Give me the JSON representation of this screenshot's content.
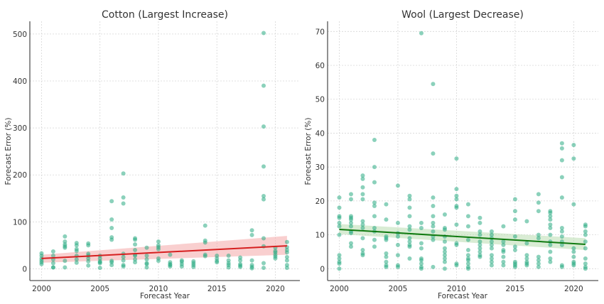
{
  "chart_data": [
    {
      "type": "scatter",
      "title": "Cotton (Largest Increase)",
      "xlabel": "Forecast Year",
      "ylabel": "Forecast Error (%)",
      "xlim": [
        1999,
        2022.1
      ],
      "ylim": [
        -25,
        527
      ],
      "xticks": [
        2000,
        2005,
        2010,
        2015,
        2020
      ],
      "yticks": [
        0,
        100,
        200,
        300,
        400,
        500
      ],
      "grid": true,
      "point_color": "#2bab84",
      "trend": {
        "color": "#d62020",
        "band_color": "#f4a8a8",
        "x": [
          2000,
          2021
        ],
        "y": [
          22,
          49
        ],
        "ci_low": [
          13,
          30
        ],
        "ci_high": [
          30,
          70
        ]
      },
      "points": [
        {
          "x": 2000,
          "y": [
            33,
            28,
            22,
            18,
            14,
            10
          ]
        },
        {
          "x": 2001,
          "y": [
            37,
            28,
            20,
            12,
            3,
            3
          ]
        },
        {
          "x": 2002,
          "y": [
            69,
            58,
            52,
            48,
            45,
            17,
            3
          ]
        },
        {
          "x": 2003,
          "y": [
            55,
            50,
            42,
            38,
            28,
            20,
            13
          ]
        },
        {
          "x": 2004,
          "y": [
            54,
            50,
            32,
            28,
            22,
            16,
            7
          ]
        },
        {
          "x": 2005,
          "y": [
            28,
            22,
            16,
            14,
            12,
            2
          ]
        },
        {
          "x": 2006,
          "y": [
            144,
            105,
            87,
            67,
            62,
            17,
            14,
            8
          ]
        },
        {
          "x": 2007,
          "y": [
            203,
            152,
            139,
            32,
            25,
            18,
            8,
            5
          ]
        },
        {
          "x": 2008,
          "y": [
            65,
            62,
            52,
            40,
            30,
            28,
            20,
            14
          ]
        },
        {
          "x": 2009,
          "y": [
            45,
            28,
            20,
            12,
            10,
            3
          ]
        },
        {
          "x": 2010,
          "y": [
            58,
            50,
            46,
            42,
            22,
            17
          ]
        },
        {
          "x": 2011,
          "y": [
            30,
            14,
            10,
            8,
            5
          ]
        },
        {
          "x": 2012,
          "y": [
            18,
            15,
            10,
            5
          ]
        },
        {
          "x": 2013,
          "y": [
            16,
            12,
            8,
            4
          ]
        },
        {
          "x": 2014,
          "y": [
            92,
            60,
            56,
            30,
            27
          ]
        },
        {
          "x": 2015,
          "y": [
            28,
            22,
            17,
            14
          ]
        },
        {
          "x": 2016,
          "y": [
            28,
            18,
            12,
            8,
            3
          ]
        },
        {
          "x": 2017,
          "y": [
            24,
            18,
            10,
            7,
            4
          ]
        },
        {
          "x": 2018,
          "y": [
            82,
            72,
            18,
            8,
            4,
            1
          ]
        },
        {
          "x": 2019,
          "y": [
            502,
            390,
            303,
            218,
            155,
            148,
            65,
            48,
            12,
            2
          ]
        },
        {
          "x": 2020,
          "y": [
            45,
            38,
            35,
            30,
            26,
            22
          ]
        },
        {
          "x": 2021,
          "y": [
            57,
            46,
            40,
            35,
            25,
            18,
            8,
            2
          ]
        }
      ]
    },
    {
      "type": "scatter",
      "title": "Wool (Largest Decrease)",
      "xlabel": "Forecast Year",
      "ylabel": "Forecast Error (%)",
      "xlim": [
        1999,
        2022.1
      ],
      "ylim": [
        -3.5,
        73
      ],
      "xticks": [
        2000,
        2005,
        2010,
        2015,
        2020
      ],
      "yticks": [
        0,
        10,
        20,
        30,
        40,
        50,
        60,
        70
      ],
      "grid": true,
      "point_color": "#2bab84",
      "trend": {
        "color": "#107a10",
        "band_color": "#b9dcb0",
        "x": [
          2000,
          2021
        ],
        "y": [
          11.6,
          7.2
        ],
        "ci_low": [
          10.2,
          5.5
        ],
        "ci_high": [
          13.2,
          9.0
        ]
      },
      "points": [
        {
          "x": 2000,
          "y": [
            21,
            18,
            15.5,
            15,
            13.5,
            12.5,
            10,
            4,
            3,
            2,
            1.5,
            0
          ]
        },
        {
          "x": 2001,
          "y": [
            22,
            20.5,
            15.5,
            15,
            14.5,
            13.5,
            12.5,
            11,
            10.5,
            7.5,
            6.5
          ]
        },
        {
          "x": 2002,
          "y": [
            27.5,
            26.5,
            24,
            22,
            20.5,
            14,
            13,
            12,
            9,
            5.5,
            4.5,
            4
          ]
        },
        {
          "x": 2003,
          "y": [
            38,
            30,
            25.5,
            19.5,
            18.5,
            15.5,
            12,
            11,
            8.5,
            6.5
          ]
        },
        {
          "x": 2004,
          "y": [
            19,
            14.5,
            9.5,
            9,
            8.5,
            4.5,
            3.5,
            2,
            1,
            0.5
          ]
        },
        {
          "x": 2005,
          "y": [
            24.5,
            13.5,
            10.5,
            9.5,
            7,
            4,
            1,
            0.5
          ]
        },
        {
          "x": 2006,
          "y": [
            21.5,
            20.5,
            18,
            15.5,
            12.5,
            11.5,
            9,
            8,
            7,
            6.5,
            3
          ]
        },
        {
          "x": 2007,
          "y": [
            69.5,
            13.5,
            12,
            7.5,
            6,
            3,
            2.5,
            1.5,
            0.5,
            0
          ]
        },
        {
          "x": 2008,
          "y": [
            54.5,
            34,
            21,
            18.5,
            15.5,
            13.5,
            12.5,
            11,
            9.5,
            8.5,
            0.5
          ]
        },
        {
          "x": 2009,
          "y": [
            16,
            12,
            11.5,
            9.5,
            8,
            6,
            5,
            4,
            3,
            2,
            0
          ]
        },
        {
          "x": 2010,
          "y": [
            32.5,
            23.5,
            21.5,
            20.5,
            18.5,
            18,
            13,
            7.5,
            7,
            1.5,
            1
          ]
        },
        {
          "x": 2011,
          "y": [
            19,
            15.5,
            12.5,
            8.5,
            5.5,
            4,
            3,
            2.5,
            1.5,
            0.5,
            0
          ]
        },
        {
          "x": 2012,
          "y": [
            15,
            13.5,
            11,
            10,
            8,
            7,
            6,
            5,
            4,
            3.5
          ]
        },
        {
          "x": 2013,
          "y": [
            11,
            10,
            9,
            8,
            7,
            6,
            4,
            3,
            2,
            1
          ]
        },
        {
          "x": 2014,
          "y": [
            12.5,
            8,
            7,
            5.5,
            5,
            3.5,
            2,
            1
          ]
        },
        {
          "x": 2015,
          "y": [
            20.5,
            17,
            14.5,
            9.5,
            6.5,
            5.5,
            2,
            1.5,
            1,
            0.5
          ]
        },
        {
          "x": 2016,
          "y": [
            14,
            7.5,
            4,
            3,
            2,
            1.5,
            1
          ]
        },
        {
          "x": 2017,
          "y": [
            22,
            19.5,
            17,
            10,
            9,
            3.5,
            2.5,
            1.5,
            0.5
          ]
        },
        {
          "x": 2018,
          "y": [
            17,
            16.5,
            15.5,
            14.5,
            13,
            12,
            10,
            8,
            7,
            5,
            3,
            2
          ]
        },
        {
          "x": 2019,
          "y": [
            37,
            35.5,
            32,
            27,
            21,
            12,
            11,
            9.5,
            8,
            7,
            1,
            0.5
          ]
        },
        {
          "x": 2020,
          "y": [
            36.5,
            32.5,
            19,
            6,
            5,
            3.5,
            2,
            1.5,
            1
          ]
        },
        {
          "x": 2021,
          "y": [
            13,
            12.5,
            11,
            10,
            8,
            6,
            3,
            1.5,
            0.5,
            0
          ]
        }
      ]
    }
  ]
}
